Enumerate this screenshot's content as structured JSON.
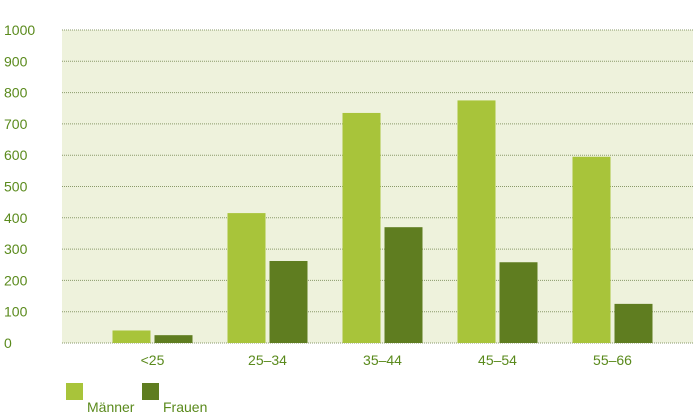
{
  "colors": {
    "plot_background": "#eef2dc",
    "gridline": "#8a9a6a",
    "axis_text": "#5a8a1c",
    "maenner": "#a8c43a",
    "frauen": "#5f7d20"
  },
  "chart_data": {
    "type": "bar",
    "title": "",
    "xlabel": "",
    "ylabel": "",
    "ylim": [
      0,
      1000
    ],
    "yticks": [
      0,
      100,
      200,
      300,
      400,
      500,
      600,
      700,
      800,
      900,
      1000
    ],
    "categories": [
      "<25",
      "25–34",
      "35–44",
      "45–54",
      "55–66"
    ],
    "series": [
      {
        "name": "Männer",
        "color": "#a8c43a",
        "values": [
          40,
          415,
          735,
          775,
          595
        ]
      },
      {
        "name": "Frauen",
        "color": "#5f7d20",
        "values": [
          25,
          262,
          370,
          258,
          125
        ]
      }
    ],
    "grid": true,
    "legend_position": "bottom-left"
  }
}
